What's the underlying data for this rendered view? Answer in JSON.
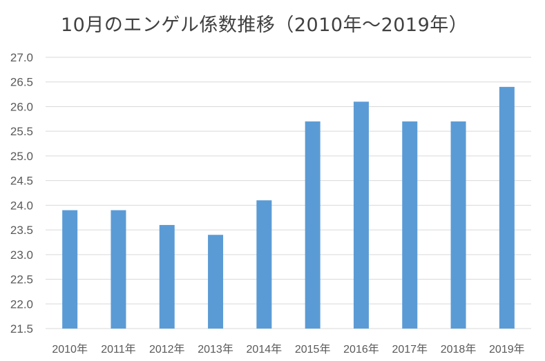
{
  "chart_data": {
    "type": "bar",
    "title": "10月のエンゲル係数推移（2010年～2019年）",
    "categories": [
      "2010年",
      "2011年",
      "2012年",
      "2013年",
      "2014年",
      "2015年",
      "2016年",
      "2017年",
      "2018年",
      "2019年"
    ],
    "values": [
      23.9,
      23.9,
      23.6,
      23.4,
      24.1,
      25.7,
      26.1,
      25.7,
      25.7,
      26.4
    ],
    "yticks": [
      "21.5",
      "22.0",
      "22.5",
      "23.0",
      "23.5",
      "24.0",
      "24.5",
      "25.0",
      "25.5",
      "26.0",
      "26.5",
      "27.0"
    ],
    "ylim": [
      21.5,
      27.0
    ],
    "grid": true,
    "legend": "none",
    "bar_color": "#5b9bd5",
    "grid_color": "#d9d9d9"
  }
}
